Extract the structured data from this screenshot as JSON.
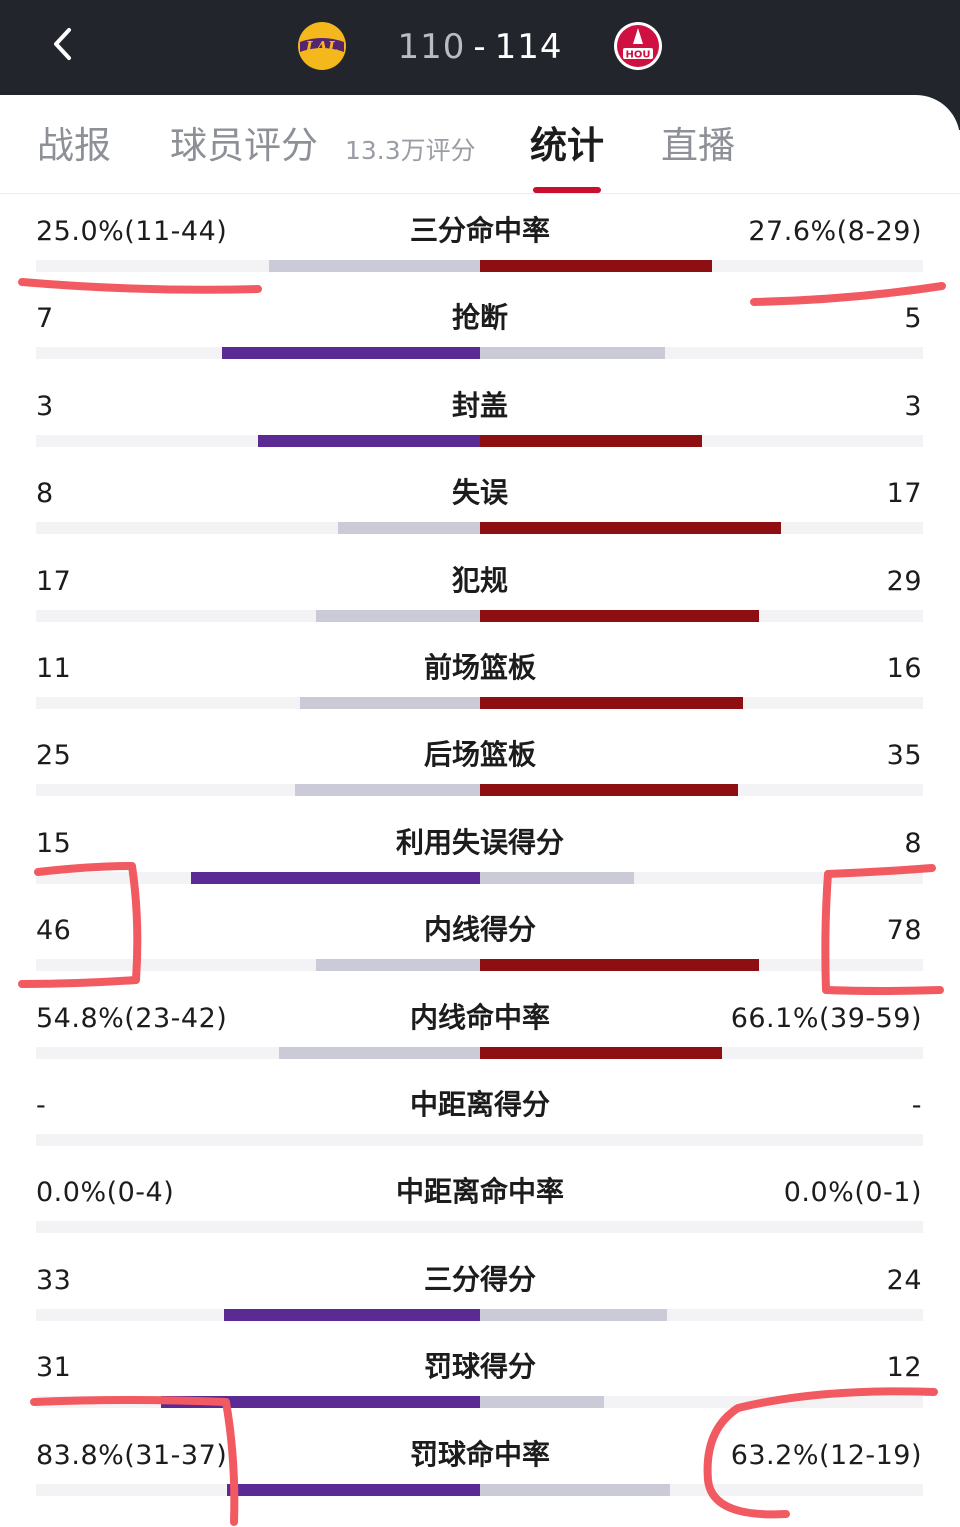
{
  "header": {
    "home_team_logo": "lakers-logo",
    "away_team_logo": "rockets-logo",
    "home_score": "110",
    "separator": "-",
    "away_score": "114"
  },
  "tabs": {
    "items": [
      {
        "label": "战报"
      },
      {
        "label": "球员评分",
        "sub": "13.3万评分"
      },
      {
        "label": "统计",
        "active": true
      },
      {
        "label": "直播"
      }
    ]
  },
  "colors": {
    "header_bg": "#22252b",
    "accent_red": "#c8102e",
    "leader_home": "#5b2a93",
    "leader_away": "#8e0f12",
    "trail": "#cbcbd8",
    "track": "#f3f3f6",
    "annotation_marker": "#f25a61"
  },
  "stats": [
    {
      "label": "三分命中率",
      "home": "25.0%(11-44)",
      "away": "27.6%(8-29)",
      "home_frac": 0.476,
      "away_frac": 0.524,
      "leader": "away"
    },
    {
      "label": "抢断",
      "home": "7",
      "away": "5",
      "home_frac": 0.583,
      "away_frac": 0.417,
      "leader": "home"
    },
    {
      "label": "封盖",
      "home": "3",
      "away": "3",
      "home_frac": 0.5,
      "away_frac": 0.5,
      "leader": "both"
    },
    {
      "label": "失误",
      "home": "8",
      "away": "17",
      "home_frac": 0.32,
      "away_frac": 0.68,
      "leader": "away"
    },
    {
      "label": "犯规",
      "home": "17",
      "away": "29",
      "home_frac": 0.37,
      "away_frac": 0.63,
      "leader": "away"
    },
    {
      "label": "前场篮板",
      "home": "11",
      "away": "16",
      "home_frac": 0.407,
      "away_frac": 0.593,
      "leader": "away"
    },
    {
      "label": "后场篮板",
      "home": "25",
      "away": "35",
      "home_frac": 0.417,
      "away_frac": 0.583,
      "leader": "away"
    },
    {
      "label": "利用失误得分",
      "home": "15",
      "away": "8",
      "home_frac": 0.652,
      "away_frac": 0.348,
      "leader": "home"
    },
    {
      "label": "内线得分",
      "home": "46",
      "away": "78",
      "home_frac": 0.371,
      "away_frac": 0.629,
      "leader": "away"
    },
    {
      "label": "内线命中率",
      "home": "54.8%(23-42)",
      "away": "66.1%(39-59)",
      "home_frac": 0.453,
      "away_frac": 0.547,
      "leader": "away"
    },
    {
      "label": "中距离得分",
      "home": "-",
      "away": "-",
      "home_frac": 0,
      "away_frac": 0,
      "leader": "none"
    },
    {
      "label": "中距离命中率",
      "home": "0.0%(0-4)",
      "away": "0.0%(0-1)",
      "home_frac": 0,
      "away_frac": 0,
      "leader": "none"
    },
    {
      "label": "三分得分",
      "home": "33",
      "away": "24",
      "home_frac": 0.579,
      "away_frac": 0.421,
      "leader": "home"
    },
    {
      "label": "罚球得分",
      "home": "31",
      "away": "12",
      "home_frac": 0.721,
      "away_frac": 0.279,
      "leader": "home"
    },
    {
      "label": "罚球命中率",
      "home": "83.8%(31-37)",
      "away": "63.2%(12-19)",
      "home_frac": 0.57,
      "away_frac": 0.43,
      "leader": "home"
    }
  ]
}
